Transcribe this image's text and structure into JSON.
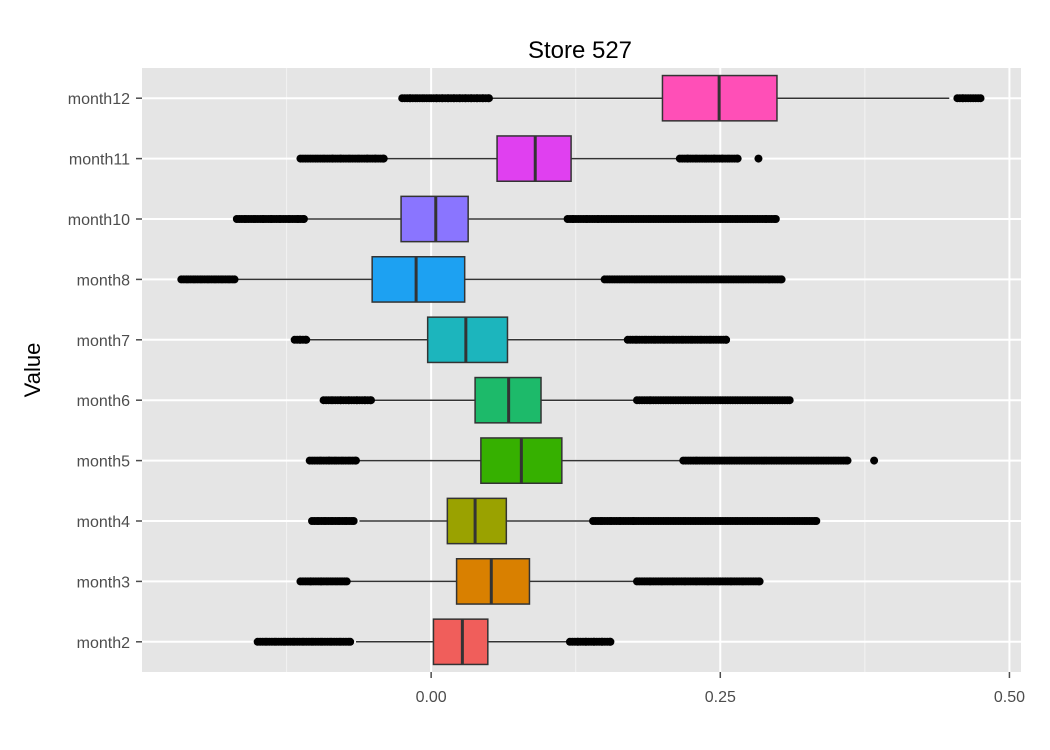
{
  "chart_data": {
    "type": "boxplot",
    "title": "Store 527",
    "xlabel": "",
    "ylabel": "Value",
    "orientation": "horizontal",
    "xlim": [
      -0.25,
      0.51
    ],
    "x_ticks": [
      0.0,
      0.25,
      0.5
    ],
    "x_tick_labels": [
      "0.00",
      "0.25",
      "0.50"
    ],
    "grid": true,
    "background": "#e5e5e5",
    "categories": [
      "month12",
      "month11",
      "month10",
      "month8",
      "month7",
      "month6",
      "month5",
      "month4",
      "month3",
      "month2"
    ],
    "series": [
      {
        "category": "month12",
        "color": "#ff4fb7",
        "whisker_low": 0.052,
        "q1": 0.2,
        "median": 0.249,
        "q3": 0.299,
        "whisker_high": 0.448,
        "outliers": [
          -0.025,
          -0.018,
          -0.012,
          -0.006,
          0.0,
          0.005,
          0.01,
          0.015,
          0.02,
          0.025,
          0.03,
          0.035,
          0.04,
          0.045,
          0.05,
          0.455,
          0.46,
          0.475
        ]
      },
      {
        "category": "month11",
        "color": "#e040f0",
        "whisker_low": -0.038,
        "q1": 0.057,
        "median": 0.09,
        "q3": 0.121,
        "whisker_high": 0.212,
        "outliers": [
          -0.113,
          -0.098,
          -0.092,
          -0.085,
          -0.078,
          -0.07,
          -0.062,
          -0.055,
          -0.048,
          -0.041,
          0.215,
          0.222,
          0.23,
          0.238,
          0.245,
          0.252,
          0.258,
          0.265,
          0.283
        ]
      },
      {
        "category": "month10",
        "color": "#8a75ff",
        "whisker_low": -0.108,
        "q1": -0.026,
        "median": 0.004,
        "q3": 0.032,
        "whisker_high": 0.115,
        "outliers": [
          -0.168,
          -0.16,
          -0.152,
          -0.145,
          -0.138,
          -0.13,
          -0.122,
          -0.115,
          -0.11,
          0.118,
          0.123,
          0.135,
          0.145,
          0.16,
          0.175,
          0.19,
          0.205,
          0.22,
          0.235,
          0.25,
          0.265,
          0.28,
          0.29,
          0.298
        ]
      },
      {
        "category": "month8",
        "color": "#1da1f2",
        "whisker_low": -0.168,
        "q1": -0.051,
        "median": -0.013,
        "q3": 0.029,
        "whisker_high": 0.148,
        "outliers": [
          -0.216,
          -0.21,
          -0.204,
          -0.198,
          -0.192,
          -0.186,
          -0.18,
          -0.174,
          -0.17,
          0.15,
          0.165,
          0.18,
          0.195,
          0.21,
          0.225,
          0.24,
          0.255,
          0.27,
          0.285,
          0.293,
          0.303
        ]
      },
      {
        "category": "month7",
        "color": "#1cb5bd",
        "whisker_low": -0.106,
        "q1": -0.003,
        "median": 0.03,
        "q3": 0.066,
        "whisker_high": 0.168,
        "outliers": [
          -0.118,
          -0.113,
          -0.108,
          0.17,
          0.178,
          0.186,
          0.194,
          0.202,
          0.21,
          0.218,
          0.226,
          0.234,
          0.242,
          0.255
        ]
      },
      {
        "category": "month6",
        "color": "#1dba6a",
        "whisker_low": -0.05,
        "q1": 0.038,
        "median": 0.067,
        "q3": 0.095,
        "whisker_high": 0.175,
        "outliers": [
          -0.093,
          -0.085,
          -0.078,
          -0.071,
          -0.064,
          -0.057,
          -0.052,
          0.178,
          0.19,
          0.205,
          0.22,
          0.235,
          0.25,
          0.265,
          0.28,
          0.295,
          0.31
        ]
      },
      {
        "category": "month5",
        "color": "#36b000",
        "whisker_low": -0.062,
        "q1": 0.043,
        "median": 0.078,
        "q3": 0.113,
        "whisker_high": 0.215,
        "outliers": [
          -0.105,
          -0.095,
          -0.088,
          -0.082,
          -0.076,
          -0.07,
          -0.065,
          0.218,
          0.23,
          0.245,
          0.26,
          0.275,
          0.29,
          0.305,
          0.32,
          0.335,
          0.35,
          0.36,
          0.383
        ]
      },
      {
        "category": "month4",
        "color": "#9aa200",
        "whisker_low": -0.062,
        "q1": 0.014,
        "median": 0.038,
        "q3": 0.065,
        "whisker_high": 0.138,
        "outliers": [
          -0.103,
          -0.097,
          -0.091,
          -0.085,
          -0.079,
          -0.073,
          -0.067,
          0.14,
          0.148,
          0.156,
          0.164,
          0.175,
          0.19,
          0.205,
          0.22,
          0.235,
          0.25,
          0.265,
          0.28,
          0.295,
          0.31,
          0.325,
          0.333
        ]
      },
      {
        "category": "month3",
        "color": "#d98000",
        "whisker_low": -0.07,
        "q1": 0.022,
        "median": 0.052,
        "q3": 0.085,
        "whisker_high": 0.175,
        "outliers": [
          -0.113,
          -0.104,
          -0.095,
          -0.089,
          -0.085,
          -0.081,
          -0.077,
          -0.073,
          0.178,
          0.19,
          0.2,
          0.21,
          0.22,
          0.23,
          0.24,
          0.25,
          0.26,
          0.27,
          0.284
        ]
      },
      {
        "category": "month2",
        "color": "#f05e5b",
        "whisker_low": -0.065,
        "q1": 0.002,
        "median": 0.027,
        "q3": 0.049,
        "whisker_high": 0.117,
        "outliers": [
          -0.15,
          -0.142,
          -0.134,
          -0.126,
          -0.118,
          -0.11,
          -0.102,
          -0.094,
          -0.086,
          -0.078,
          -0.07,
          0.12,
          0.127,
          0.134,
          0.141,
          0.148,
          0.155
        ]
      }
    ]
  }
}
